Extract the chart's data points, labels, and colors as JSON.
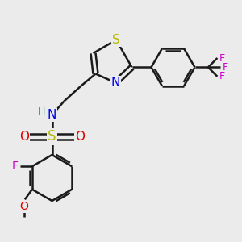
{
  "background_color": "#ebebeb",
  "bond_color": "#1a1a1a",
  "bond_width": 1.8,
  "atom_colors": {
    "S_thiazole": "#b8b800",
    "N_thiazole": "#0000ee",
    "S_sulfonyl": "#b8b800",
    "N_amine": "#0000ee",
    "O_sulfonyl": "#dd0000",
    "F_fluoro": "#cc00cc",
    "O_methoxy": "#dd0000",
    "H_amine": "#008888",
    "F_CF3": "#cc00cc"
  },
  "font_size": 10,
  "figsize": [
    3.0,
    3.0
  ],
  "dpi": 100,
  "xlim": [
    0,
    10
  ],
  "ylim": [
    0,
    10
  ]
}
